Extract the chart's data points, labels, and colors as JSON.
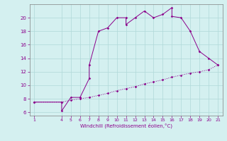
{
  "xlabel": "Windchill (Refroidissement éolien,°C)",
  "background_color": "#d4f0f0",
  "line_color": "#8b008b",
  "x_main": [
    1,
    4,
    4,
    5,
    6,
    7,
    7,
    8,
    9,
    10,
    11,
    11,
    12,
    13,
    14,
    15,
    16,
    16,
    17,
    18,
    19,
    20,
    21
  ],
  "y_main": [
    7.5,
    7.5,
    6.2,
    8.2,
    8.2,
    11.0,
    13.0,
    18.0,
    18.5,
    20.0,
    20.0,
    19.0,
    20.0,
    21.0,
    20.0,
    20.5,
    21.5,
    20.2,
    20.0,
    18.0,
    15.0,
    14.0,
    13.0
  ],
  "x_line2": [
    1,
    4,
    5,
    6,
    7,
    8,
    9,
    10,
    11,
    12,
    13,
    14,
    15,
    16,
    17,
    18,
    19,
    20,
    21
  ],
  "y_line2": [
    7.5,
    7.5,
    7.8,
    8.0,
    8.2,
    8.5,
    8.8,
    9.2,
    9.5,
    9.8,
    10.2,
    10.5,
    10.8,
    11.2,
    11.5,
    11.8,
    12.0,
    12.3,
    13.0
  ],
  "ylim": [
    5.5,
    22
  ],
  "xlim": [
    0.5,
    21.5
  ],
  "yticks": [
    6,
    8,
    10,
    12,
    14,
    16,
    18,
    20
  ],
  "xticks": [
    1,
    4,
    5,
    6,
    7,
    8,
    9,
    10,
    11,
    12,
    13,
    14,
    15,
    16,
    17,
    18,
    19,
    20,
    21
  ],
  "grid_color": "#b0d8d8",
  "spine_color": "#808080"
}
